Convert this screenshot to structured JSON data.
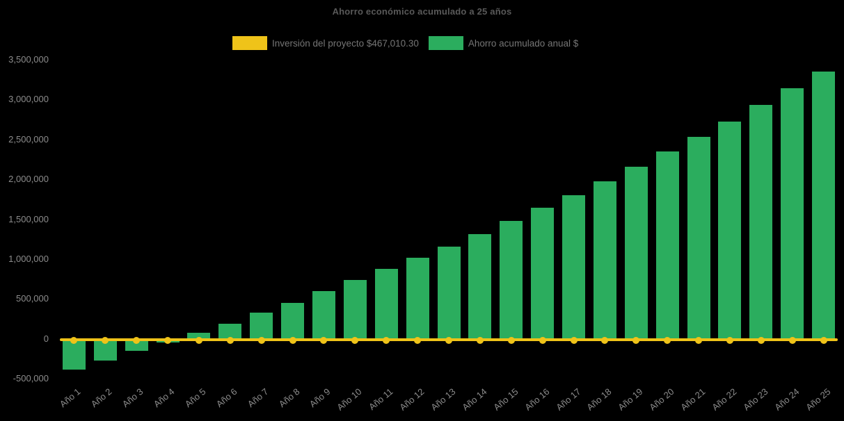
{
  "title": "Ahorro económico acumulado a 25 años",
  "legend": {
    "items": [
      {
        "label": "Inversión del proyecto $467,010.30",
        "color": "#EFC319"
      },
      {
        "label": "Ahorro acumulado anual $",
        "color": "#2BAD5E"
      }
    ]
  },
  "colors": {
    "background": "#000000",
    "bar_green": "#2BAD5E",
    "line_yellow": "#EFC319",
    "title_text": "#595959",
    "legend_text": "#757575",
    "axis_text": "#8C8C8C"
  },
  "chart_data": {
    "type": "bar",
    "title": "Ahorro económico acumulado a 25 años",
    "categories": [
      "Año 1",
      "Año 2",
      "Año 3",
      "Año 4",
      "Año 5",
      "Año 6",
      "Año 7",
      "Año 8",
      "Año 9",
      "Año 10",
      "Año 11",
      "Año 12",
      "Año 13",
      "Año 14",
      "Año 15",
      "Año 16",
      "Año 17",
      "Año 18",
      "Año 19",
      "Año 20",
      "Año 21",
      "Año 22",
      "Año 23",
      "Año 24",
      "Año 25"
    ],
    "series": [
      {
        "name": "Inversión del proyecto $467,010.30",
        "type": "line",
        "marker": "circle",
        "color": "#EFC319",
        "values": [
          0,
          0,
          0,
          0,
          0,
          0,
          0,
          0,
          0,
          0,
          0,
          0,
          0,
          0,
          0,
          0,
          0,
          0,
          0,
          0,
          0,
          0,
          0,
          0,
          0
        ]
      },
      {
        "name": "Ahorro acumulado anual $",
        "type": "bar",
        "color": "#2BAD5E",
        "values": [
          -385000,
          -275000,
          -155000,
          -50000,
          75000,
          190000,
          325000,
          450000,
          595000,
          735000,
          875000,
          1015000,
          1160000,
          1310000,
          1475000,
          1640000,
          1805000,
          1975000,
          2155000,
          2350000,
          2530000,
          2725000,
          2935000,
          3140000,
          3350000
        ]
      }
    ],
    "xlabel": "",
    "ylabel": "",
    "ylim": [
      -500000,
      3500000
    ],
    "yticks": [
      {
        "v": 3500000,
        "label": "3,500,000"
      },
      {
        "v": 3000000,
        "label": "3,000,000"
      },
      {
        "v": 2500000,
        "label": "2,500,000"
      },
      {
        "v": 2000000,
        "label": "2,000,000"
      },
      {
        "v": 1500000,
        "label": "1,500,000"
      },
      {
        "v": 1000000,
        "label": "1,000,000"
      },
      {
        "v": 500000,
        "label": "500,000"
      },
      {
        "v": 0,
        "label": "0"
      },
      {
        "v": -500000,
        "label": "-500,000"
      }
    ],
    "grid": false,
    "legend_position": "top-center",
    "x_label_rotation_deg": -40
  }
}
